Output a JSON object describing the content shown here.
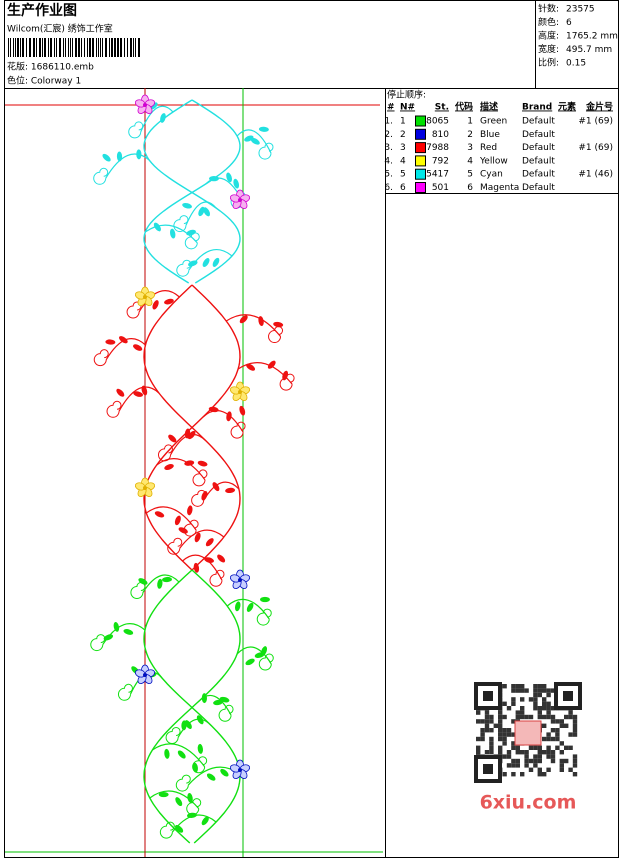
{
  "header": {
    "title": "生产作业图",
    "studio": "Wilcom(汇宸) 绣饰工作室",
    "design": "花版: 1686110.emb",
    "colorway": "色位: Colorway 1"
  },
  "stats": [
    {
      "label": "针数:",
      "value": "23575"
    },
    {
      "label": "颜色:",
      "value": "6"
    },
    {
      "label": "高度:",
      "value": "1765.2 mm"
    },
    {
      "label": "宽度:",
      "value": "495.7 mm"
    },
    {
      "label": "比例:",
      "value": "0.15"
    }
  ],
  "table": {
    "caption": "停止顺序:",
    "headers": [
      "#",
      "N#",
      "St.",
      "代码",
      "描述",
      "Brand",
      "元素",
      "金片号"
    ],
    "rows": [
      {
        "stop": "1.",
        "n": "1",
        "color": "#00e000",
        "stitches": "8065",
        "code": "1",
        "name": "Green",
        "brand": "Default",
        "sequin": "#1 (69)"
      },
      {
        "stop": "2.",
        "n": "2",
        "color": "#0000e0",
        "stitches": "810",
        "code": "2",
        "name": "Blue",
        "brand": "Default"
      },
      {
        "stop": "3.",
        "n": "3",
        "color": "#ff0000",
        "stitches": "7988",
        "code": "3",
        "name": "Red",
        "brand": "Default",
        "sequin": "#1 (69)"
      },
      {
        "stop": "4.",
        "n": "4",
        "color": "#ffff00",
        "stitches": "792",
        "code": "4",
        "name": "Yellow",
        "brand": "Default"
      },
      {
        "stop": "5.",
        "n": "5",
        "color": "#00e8e8",
        "stitches": "5417",
        "code": "5",
        "name": "Cyan",
        "brand": "Default",
        "sequin": "#1 (46)"
      },
      {
        "stop": "6.",
        "n": "6",
        "color": "#ff00ff",
        "stitches": "501",
        "code": "6",
        "name": "Magenta",
        "brand": "Default"
      }
    ]
  },
  "watermark": "6xiu.com"
}
